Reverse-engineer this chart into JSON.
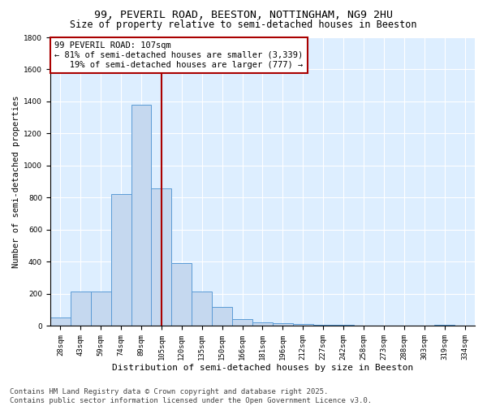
{
  "title_line1": "99, PEVERIL ROAD, BEESTON, NOTTINGHAM, NG9 2HU",
  "title_line2": "Size of property relative to semi-detached houses in Beeston",
  "xlabel": "Distribution of semi-detached houses by size in Beeston",
  "ylabel": "Number of semi-detached properties",
  "footnote": "Contains HM Land Registry data © Crown copyright and database right 2025.\nContains public sector information licensed under the Open Government Licence v3.0.",
  "bin_labels": [
    "28sqm",
    "43sqm",
    "59sqm",
    "74sqm",
    "89sqm",
    "105sqm",
    "120sqm",
    "135sqm",
    "150sqm",
    "166sqm",
    "181sqm",
    "196sqm",
    "212sqm",
    "227sqm",
    "242sqm",
    "258sqm",
    "273sqm",
    "288sqm",
    "303sqm",
    "319sqm",
    "334sqm"
  ],
  "bar_values": [
    50,
    215,
    215,
    820,
    1380,
    860,
    390,
    215,
    120,
    40,
    20,
    15,
    10,
    8,
    5,
    4,
    3,
    0,
    0,
    8,
    0
  ],
  "bar_color": "#c5d8ef",
  "bar_edge_color": "#5b9bd5",
  "vline_x_index": 5,
  "vline_color": "#aa0000",
  "annotation_text": "99 PEVERIL ROAD: 107sqm\n← 81% of semi-detached houses are smaller (3,339)\n   19% of semi-detached houses are larger (777) →",
  "annotation_box_color": "white",
  "annotation_box_edge_color": "#aa0000",
  "ylim": [
    0,
    1800
  ],
  "yticks": [
    0,
    200,
    400,
    600,
    800,
    1000,
    1200,
    1400,
    1600,
    1800
  ],
  "background_color": "#ddeeff",
  "grid_color": "white",
  "title_fontsize": 9.5,
  "subtitle_fontsize": 8.5,
  "axis_label_fontsize": 8,
  "tick_fontsize": 6.5,
  "annotation_fontsize": 7.5,
  "footnote_fontsize": 6.5,
  "ylabel_fontsize": 7.5
}
